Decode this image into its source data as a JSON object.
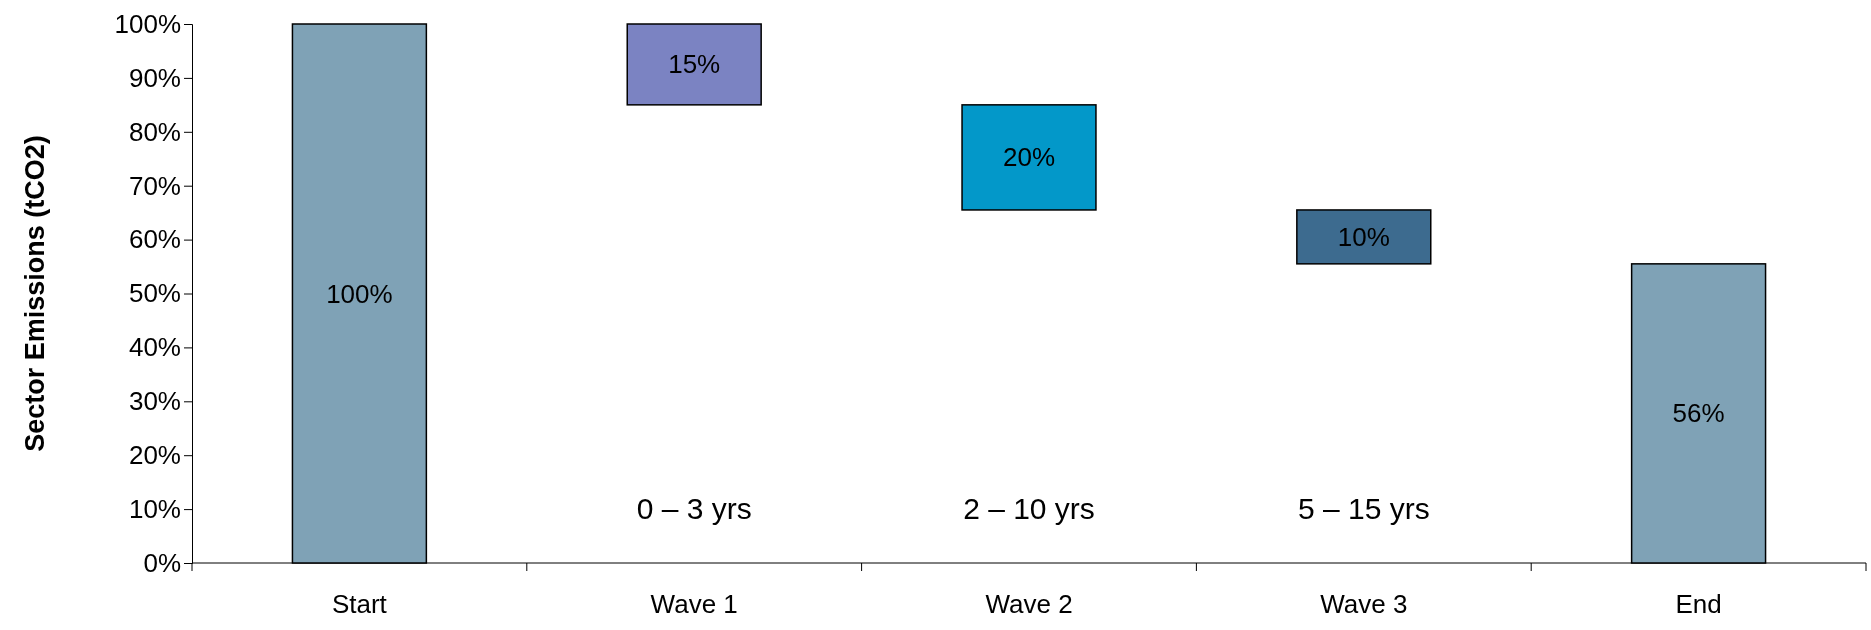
{
  "chart_data": {
    "type": "bar",
    "categories": [
      "Start",
      "Wave 1",
      "Wave 2",
      "Wave 3",
      "End"
    ],
    "values": [
      100,
      15,
      19.5,
      10,
      55.5
    ],
    "base": [
      0,
      85,
      65.5,
      55.5,
      0
    ],
    "colors": [
      "#7fa2b6",
      "#7b83c2",
      "#0398c9",
      "#3d6b8f",
      "#7fa2b6"
    ],
    "value_labels": [
      "100%",
      "15%",
      "20%",
      "10%",
      "56%"
    ],
    "ylabel": "Sector Emissions (tCO2)",
    "ylim": [
      0,
      100
    ],
    "yticks": [
      {
        "value": 0,
        "label": "0%"
      },
      {
        "value": 10,
        "label": "10%"
      },
      {
        "value": 20,
        "label": "20%"
      },
      {
        "value": 30,
        "label": "30%"
      },
      {
        "value": 40,
        "label": "40%"
      },
      {
        "value": 50,
        "label": "50%"
      },
      {
        "value": 60,
        "label": "60%"
      },
      {
        "value": 70,
        "label": "70%"
      },
      {
        "value": 80,
        "label": "80%"
      },
      {
        "value": 90,
        "label": "90%"
      },
      {
        "value": 100,
        "label": "100%"
      }
    ],
    "annotations": [
      "0 – 3 yrs",
      "2 – 10 yrs",
      "5 – 15 yrs"
    ],
    "grid": false
  }
}
